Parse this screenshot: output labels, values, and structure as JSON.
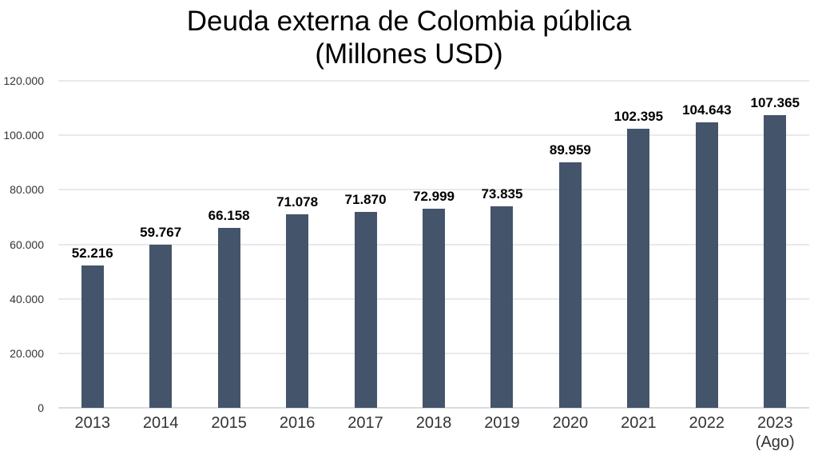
{
  "title": {
    "line1": "Deuda externa de Colombia pública",
    "line2": "(Millones USD)"
  },
  "chart_data": {
    "type": "bar",
    "title": "Deuda externa de Colombia pública (Millones USD)",
    "unit": "Millones USD",
    "categories": [
      "2013",
      "2014",
      "2015",
      "2016",
      "2017",
      "2018",
      "2019",
      "2020",
      "2021",
      "2022",
      "2023"
    ],
    "category_sublabels": [
      "",
      "",
      "",
      "",
      "",
      "",
      "",
      "",
      "",
      "",
      "(Ago)"
    ],
    "values": [
      52216,
      59767,
      66158,
      71078,
      71870,
      72999,
      73835,
      89959,
      102395,
      104643,
      107365
    ],
    "value_labels": [
      "52.216",
      "59.767",
      "66.158",
      "71.078",
      "71.870",
      "72.999",
      "73.835",
      "89.959",
      "102.395",
      "104.643",
      "107.365"
    ],
    "xlabel": "",
    "ylabel": "",
    "ylim": [
      0,
      120000
    ],
    "yticks": [
      0,
      20000,
      40000,
      60000,
      80000,
      100000,
      120000
    ],
    "ytick_labels": [
      "0",
      "20.000",
      "40.000",
      "60.000",
      "80.000",
      "100.000",
      "120.000"
    ],
    "grid": true,
    "legend": "none",
    "bar_color": "#44546A",
    "gridline_color": "#e7e9eb",
    "baseline_color": "#d8dbde",
    "axis_label_color": "#333333",
    "value_label_color": "#000000",
    "background_color": "#ffffff"
  }
}
